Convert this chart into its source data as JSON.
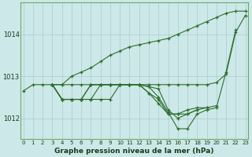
{
  "title": "Graphe pression niveau de la mer (hPa)",
  "bg_color": "#cde8e8",
  "grid_color": "#aacccc",
  "line_color": "#2d6e2d",
  "x_labels": [
    "0",
    "1",
    "2",
    "3",
    "4",
    "5",
    "6",
    "7",
    "8",
    "9",
    "10",
    "11",
    "12",
    "13",
    "14",
    "15",
    "16",
    "17",
    "18",
    "19",
    "20",
    "21",
    "22",
    "23"
  ],
  "y_ticks": [
    1012,
    1013,
    1014
  ],
  "ylim": [
    1011.5,
    1014.75
  ],
  "series": [
    [
      1012.65,
      1012.8,
      1012.8,
      1012.8,
      1012.8,
      1012.8,
      1012.8,
      1012.8,
      1012.8,
      1012.8,
      1012.8,
      1012.8,
      1012.8,
      1012.8,
      1012.8,
      1012.8,
      1012.8,
      1012.8,
      1012.8,
      1012.8,
      1012.85,
      1013.05,
      1014.05,
      1014.45
    ],
    [
      null,
      null,
      null,
      1012.8,
      1012.45,
      1012.45,
      1012.45,
      1012.45,
      1012.45,
      1012.45,
      1012.8,
      1012.8,
      1012.8,
      1012.75,
      1012.7,
      1012.2,
      1012.0,
      1012.1,
      1012.2,
      null,
      null,
      null,
      null,
      null
    ],
    [
      null,
      null,
      null,
      1012.8,
      1012.45,
      1012.45,
      1012.45,
      1012.45,
      1012.8,
      1012.8,
      1012.8,
      1012.8,
      1012.8,
      1012.6,
      1012.45,
      1012.1,
      1012.1,
      1012.1,
      1012.2,
      1012.25,
      null,
      null,
      null,
      null
    ],
    [
      null,
      null,
      null,
      1012.8,
      1012.45,
      1012.45,
      1012.45,
      1012.8,
      1012.8,
      1012.8,
      1012.8,
      1012.8,
      1012.8,
      1012.6,
      1012.35,
      1012.1,
      1012.1,
      1012.2,
      1012.25,
      1012.25,
      1012.3,
      null,
      null,
      null
    ],
    [
      null,
      null,
      null,
      1012.8,
      1012.45,
      1012.45,
      1012.45,
      1012.8,
      1012.8,
      1012.8,
      1012.8,
      1012.8,
      1012.8,
      1012.75,
      1012.5,
      1012.15,
      1011.75,
      1011.75,
      1012.1,
      1012.2,
      1012.25,
      1013.1,
      1014.1,
      null
    ],
    [
      null,
      null,
      null,
      1012.8,
      1012.8,
      1013.0,
      1013.1,
      1013.2,
      1013.35,
      1013.5,
      1013.6,
      1013.7,
      1013.75,
      1013.8,
      1013.85,
      1013.9,
      1014.0,
      1014.1,
      1014.2,
      1014.3,
      1014.4,
      1014.5,
      1014.55,
      1014.55
    ]
  ]
}
